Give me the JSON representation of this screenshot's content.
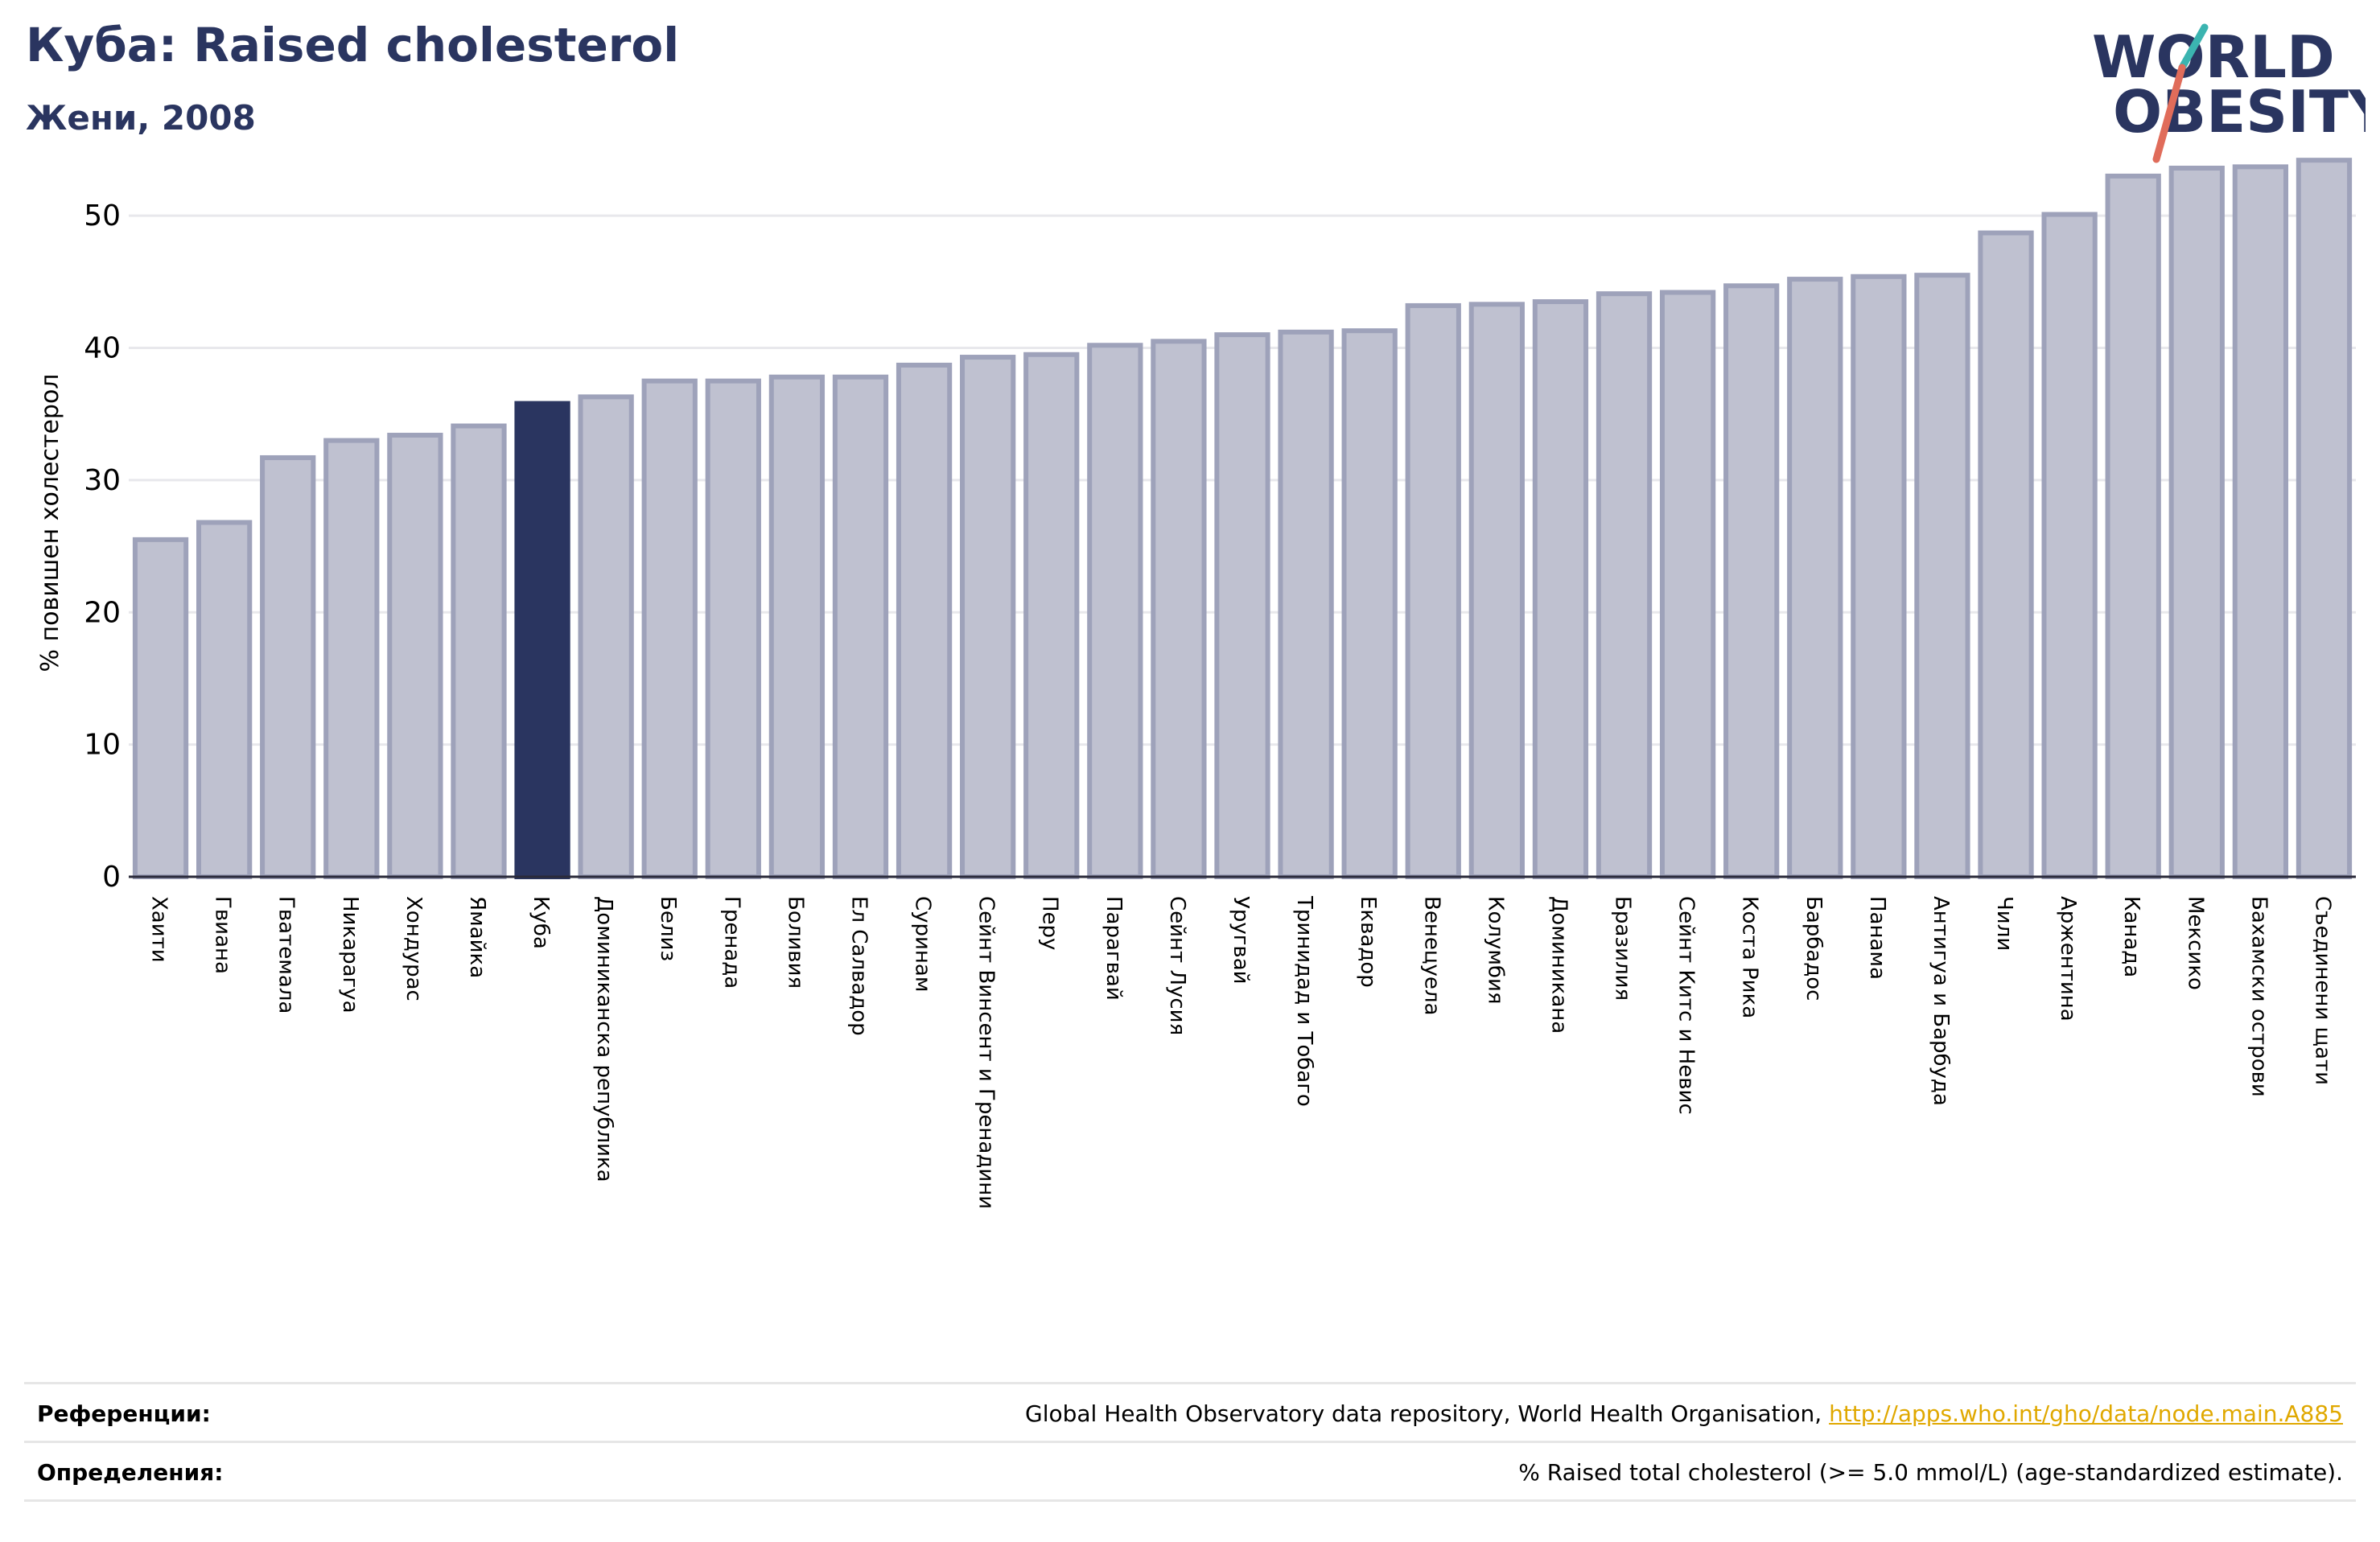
{
  "header": {
    "title": "Куба: Raised cholesterol",
    "subtitle": "Жени, 2008"
  },
  "logo": {
    "line1": "WORLD",
    "line2": "OBESITY"
  },
  "colors": {
    "highlight": "#2a3560",
    "bar_fill": "#bfc1d0",
    "bar_stroke": "#9ea2ba",
    "title": "#2a3560",
    "link": "#e0a800",
    "logo_teal": "#3bb4b0",
    "logo_coral": "#e06c5a"
  },
  "chart_data": {
    "type": "bar",
    "ylabel": "% повишен холестерол",
    "ylim": [
      0,
      55
    ],
    "yticks": [
      0,
      10,
      20,
      30,
      40,
      50
    ],
    "grid": true,
    "highlight": "Куба",
    "categories": [
      "Хаити",
      "Гвиана",
      "Гватемала",
      "Никарагуа",
      "Хондурас",
      "Ямайка",
      "Куба",
      "Доминиканска република",
      "Белиз",
      "Гренада",
      "Боливия",
      "Ел Салвадор",
      "Суринам",
      "Сейнт Винсент и Гренадини",
      "Перу",
      "Парагвай",
      "Сейнт Лусия",
      "Уругвай",
      "Тринидад и Тобаго",
      "Еквадор",
      "Венецуела",
      "Колумбия",
      "Доминикана",
      "Бразилия",
      "Сейнт Китс и Невис",
      "Коста Рика",
      "Барбадос",
      "Панама",
      "Антигуа и Барбуда",
      "Чили",
      "Аржентина",
      "Канада",
      "Мексико",
      "Бахамски острови",
      "Съединени щати"
    ],
    "values": [
      25.5,
      26.8,
      31.7,
      33.0,
      33.4,
      34.1,
      35.8,
      36.3,
      37.5,
      37.5,
      37.8,
      37.8,
      38.7,
      39.3,
      39.5,
      40.2,
      40.5,
      41.0,
      41.2,
      41.3,
      43.2,
      43.3,
      43.5,
      44.1,
      44.2,
      44.7,
      45.2,
      45.4,
      45.5,
      48.7,
      50.1,
      53.0,
      53.6,
      53.7,
      54.2
    ]
  },
  "footer": {
    "references_label": "Референции:",
    "references_text": "Global Health Observatory data repository, World Health Organisation, ",
    "references_link": "http://apps.who.int/gho/data/node.main.A885",
    "definitions_label": "Определения:",
    "definitions_text": "% Raised total cholesterol (>= 5.0 mmol/L) (age-standardized estimate)."
  }
}
